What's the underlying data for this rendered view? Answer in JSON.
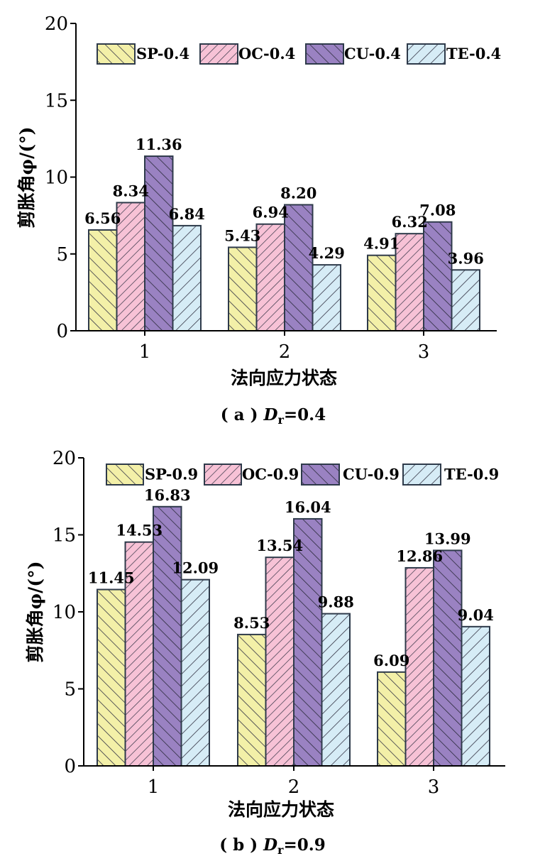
{
  "colors": {
    "sp": "#f3f0a8",
    "oc": "#f7c2d6",
    "cu": "#9a82c2",
    "te": "#d6ecf6",
    "stroke": "#2e3a4a",
    "hatch": "#333344"
  },
  "chart_data": [
    {
      "type": "bar",
      "categories": [
        "1",
        "2",
        "3"
      ],
      "series": [
        {
          "name": "SP-0.4",
          "values": [
            6.56,
            5.43,
            4.91
          ]
        },
        {
          "name": "OC-0.4",
          "values": [
            8.34,
            6.94,
            6.32
          ]
        },
        {
          "name": "CU-0.4",
          "values": [
            11.36,
            8.2,
            7.08
          ]
        },
        {
          "name": "TE-0.4",
          "values": [
            6.84,
            4.29,
            3.96
          ]
        }
      ],
      "value_labels": [
        [
          "6.56",
          "5.43",
          "4.91"
        ],
        [
          "8.34",
          "6.94",
          "6.32"
        ],
        [
          "11.36",
          "8.20",
          "7.08"
        ],
        [
          "6.84",
          "4.29",
          "3.96"
        ]
      ],
      "yticks": [
        "0",
        "5",
        "10",
        "15",
        "20"
      ],
      "ylim": [
        0,
        20
      ],
      "xlabel": "法向应力状态",
      "ylabel": "剪胀角φ/(°)",
      "caption_prefix": "( a ) ",
      "caption_var": "D",
      "caption_sub": "r",
      "caption_suffix": "=0.4",
      "legend": "top"
    },
    {
      "type": "bar",
      "categories": [
        "1",
        "2",
        "3"
      ],
      "series": [
        {
          "name": "SP-0.9",
          "values": [
            11.45,
            8.53,
            6.09
          ]
        },
        {
          "name": "OC-0.9",
          "values": [
            14.53,
            13.54,
            12.86
          ]
        },
        {
          "name": "CU-0.9",
          "values": [
            16.83,
            16.04,
            13.99
          ]
        },
        {
          "name": "TE-0.9",
          "values": [
            12.09,
            9.88,
            9.04
          ]
        }
      ],
      "value_labels": [
        [
          "11.45",
          "8.53",
          "6.09"
        ],
        [
          "14.53",
          "13.54",
          "12.86"
        ],
        [
          "16.83",
          "16.04",
          "13.99"
        ],
        [
          "12.09",
          "9.88",
          "9.04"
        ]
      ],
      "yticks": [
        "0",
        "5",
        "10",
        "15",
        "20"
      ],
      "ylim": [
        0,
        20
      ],
      "xlabel": "法向应力状态",
      "ylabel": "剪胀角φ/(°)",
      "caption_prefix": "( b ) ",
      "caption_var": "D",
      "caption_sub": "r",
      "caption_suffix": "=0.9",
      "legend": "top"
    }
  ]
}
